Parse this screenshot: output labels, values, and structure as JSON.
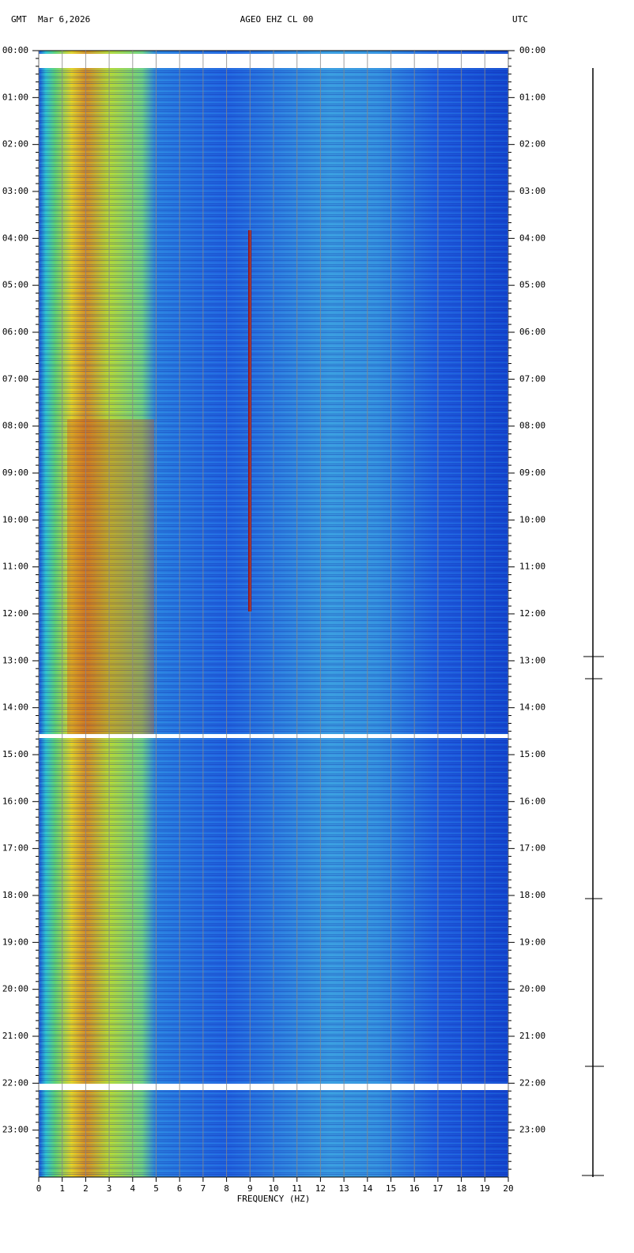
{
  "chart_data": {
    "type": "spectrogram",
    "timezone_left": "GMT",
    "date": "Mar 6,2026",
    "title": "AGEO EHZ CL 00",
    "timezone_right": "UTC",
    "xlabel": "FREQUENCY (HZ)",
    "xlim": [
      0,
      20
    ],
    "xticks": [
      0,
      1,
      2,
      3,
      4,
      5,
      6,
      7,
      8,
      9,
      10,
      11,
      12,
      13,
      14,
      15,
      16,
      17,
      18,
      19,
      20
    ],
    "ylim": [
      0,
      24
    ],
    "yticks": [
      {
        "value": 0,
        "label": "00:00"
      },
      {
        "value": 1,
        "label": "01:00"
      },
      {
        "value": 2,
        "label": "02:00"
      },
      {
        "value": 3,
        "label": "03:00"
      },
      {
        "value": 4,
        "label": "04:00"
      },
      {
        "value": 5,
        "label": "05:00"
      },
      {
        "value": 6,
        "label": "06:00"
      },
      {
        "value": 7,
        "label": "07:00"
      },
      {
        "value": 8,
        "label": "08:00"
      },
      {
        "value": 9,
        "label": "09:00"
      },
      {
        "value": 10,
        "label": "10:00"
      },
      {
        "value": 11,
        "label": "11:00"
      },
      {
        "value": 12,
        "label": "12:00"
      },
      {
        "value": 13,
        "label": "13:00"
      },
      {
        "value": 14,
        "label": "14:00"
      },
      {
        "value": 15,
        "label": "15:00"
      },
      {
        "value": 16,
        "label": "16:00"
      },
      {
        "value": 17,
        "label": "17:00"
      },
      {
        "value": 18,
        "label": "18:00"
      },
      {
        "value": 19,
        "label": "19:00"
      },
      {
        "value": 20,
        "label": "20:00"
      },
      {
        "value": 21,
        "label": "21:00"
      },
      {
        "value": 22,
        "label": "22:00"
      },
      {
        "value": 23,
        "label": "23:00"
      }
    ],
    "grid": true
  }
}
